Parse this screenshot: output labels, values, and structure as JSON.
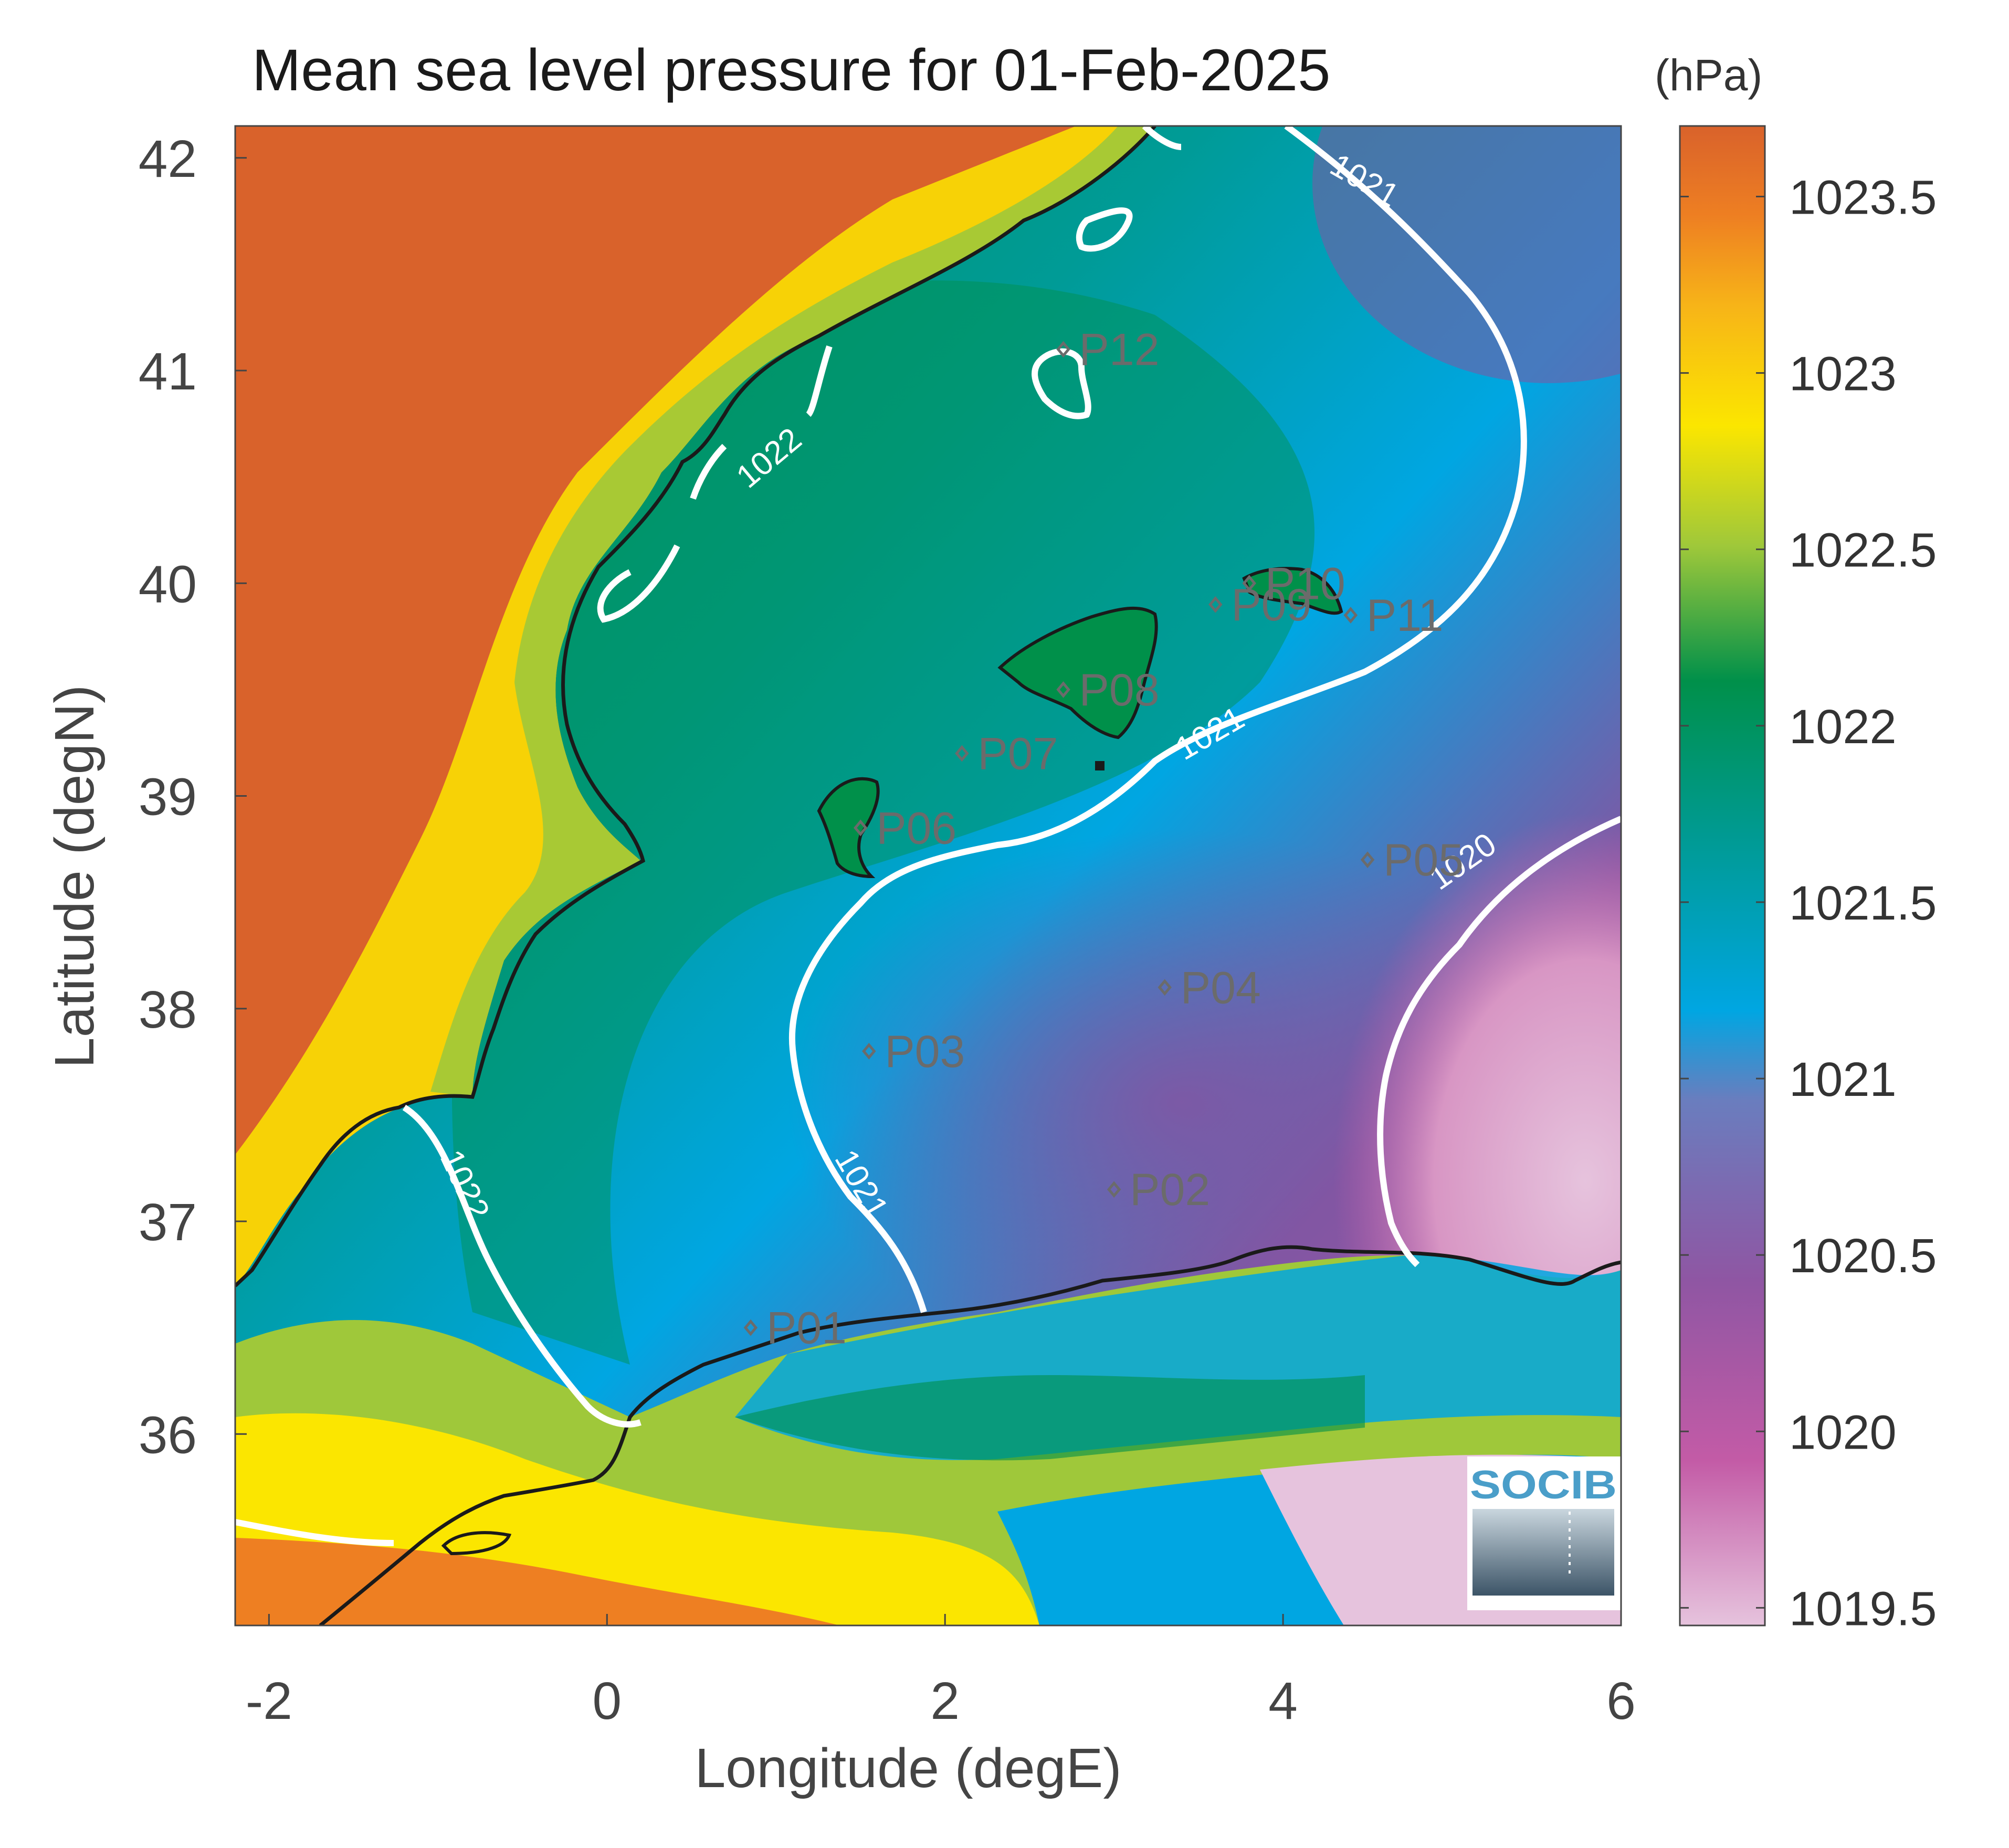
{
  "title": "Mean sea level pressure for 01-Feb-2025",
  "colorbar": {
    "unit_label": "(hPa)",
    "ticks": [
      1019.5,
      1020,
      1020.5,
      1021,
      1021.5,
      1022,
      1022.5,
      1023,
      1023.5
    ],
    "tick_labels": [
      "1019.5",
      "1020",
      "1020.5",
      "1021",
      "1021.5",
      "1022",
      "1022.5",
      "1023",
      "1023.5"
    ],
    "range": [
      1019.45,
      1023.7
    ],
    "colors": [
      "#e6c3dd",
      "#c35ba6",
      "#8156a3",
      "#00a6e2",
      "#009b97",
      "#00904a",
      "#9fc83a",
      "#fbe600",
      "#f7b418",
      "#ee7f22",
      "#d9622b"
    ]
  },
  "map": {
    "xlabel": "Longitude (degE)",
    "ylabel": "Latitude (degN)",
    "xlim": [
      -2.2,
      6
    ],
    "ylim": [
      35.1,
      42.15
    ],
    "x_ticks": [
      -2,
      0,
      2,
      4,
      6
    ],
    "x_tick_labels": [
      "-2",
      "0",
      "2",
      "4",
      "6"
    ],
    "y_ticks": [
      36,
      37,
      38,
      39,
      40,
      41,
      42
    ],
    "y_tick_labels": [
      "36",
      "37",
      "38",
      "39",
      "40",
      "41",
      "42"
    ]
  },
  "stations": [
    {
      "label": "P01",
      "lon": 0.85,
      "lat": 36.5
    },
    {
      "label": "P02",
      "lon": 3.0,
      "lat": 37.15
    },
    {
      "label": "P03",
      "lon": 1.55,
      "lat": 37.8
    },
    {
      "label": "P04",
      "lon": 3.3,
      "lat": 38.1
    },
    {
      "label": "P05",
      "lon": 4.5,
      "lat": 38.7
    },
    {
      "label": "P06",
      "lon": 1.5,
      "lat": 38.85
    },
    {
      "label": "P07",
      "lon": 2.1,
      "lat": 39.2
    },
    {
      "label": "P08",
      "lon": 2.7,
      "lat": 39.5
    },
    {
      "label": "P09",
      "lon": 3.6,
      "lat": 39.9
    },
    {
      "label": "P10",
      "lon": 3.8,
      "lat": 40.0
    },
    {
      "label": "P11",
      "lon": 4.4,
      "lat": 39.85
    },
    {
      "label": "P12",
      "lon": 2.7,
      "lat": 41.1
    }
  ],
  "contour_labels": [
    {
      "text": "1021",
      "lon": 4.45,
      "lat": 41.85
    },
    {
      "text": "1022",
      "lon": 1.0,
      "lat": 40.55
    },
    {
      "text": "1021",
      "lon": 3.6,
      "lat": 39.25
    },
    {
      "text": "1020",
      "lon": 5.1,
      "lat": 38.65
    },
    {
      "text": "1022",
      "lon": -0.9,
      "lat": 37.15
    },
    {
      "text": "1021",
      "lon": 1.45,
      "lat": 37.15
    }
  ],
  "logo": {
    "text": "SOCIB"
  }
}
